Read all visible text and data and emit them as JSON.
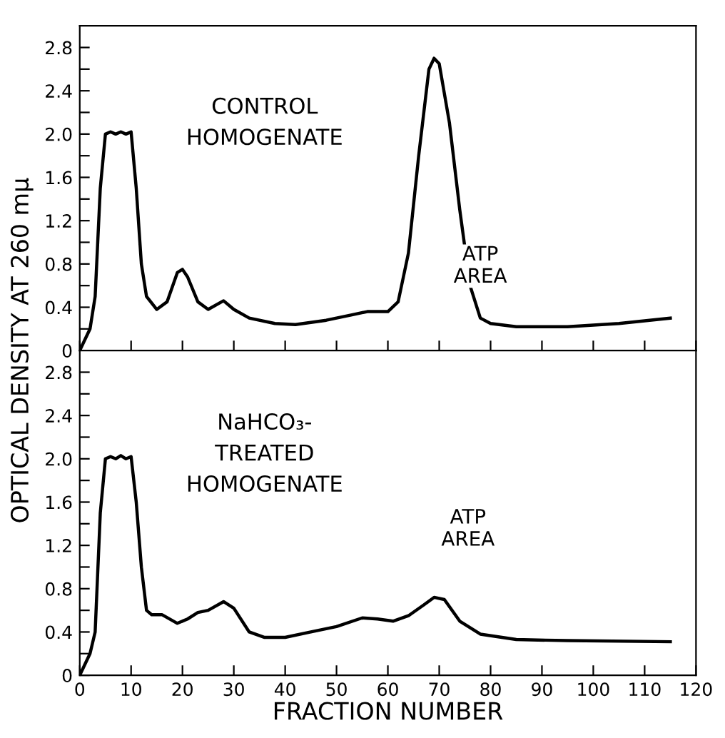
{
  "chart_data": [
    {
      "type": "line",
      "ylabel": "OPTICAL DENSITY AT 260 mμ",
      "annotations": [
        "CONTROL\nHOMOGENATE",
        "ATP\nAREA"
      ],
      "x": [
        0,
        2,
        3,
        4,
        5,
        6,
        7,
        8,
        9,
        10,
        11,
        12,
        13,
        15,
        17,
        19,
        20,
        21,
        23,
        25,
        28,
        30,
        33,
        38,
        42,
        48,
        53,
        56,
        60,
        62,
        64,
        66,
        68,
        69,
        70,
        72,
        74,
        76,
        78,
        80,
        85,
        95,
        105,
        115
      ],
      "series": [
        {
          "color": "#000000",
          "values": [
            0,
            0.2,
            0.5,
            1.5,
            2.0,
            2.02,
            2.0,
            2.02,
            2.0,
            2.02,
            1.5,
            0.8,
            0.5,
            0.38,
            0.45,
            0.72,
            0.75,
            0.68,
            0.45,
            0.38,
            0.46,
            0.38,
            0.3,
            0.25,
            0.24,
            0.28,
            0.33,
            0.36,
            0.36,
            0.45,
            0.9,
            1.8,
            2.6,
            2.7,
            2.65,
            2.1,
            1.3,
            0.6,
            0.3,
            0.25,
            0.22,
            0.22,
            0.25,
            0.3
          ]
        }
      ],
      "xlim": [
        0,
        120
      ],
      "xticks": [
        0,
        10,
        20,
        30,
        40,
        50,
        60,
        70,
        80,
        90,
        100,
        110,
        120
      ],
      "ylim": [
        0,
        3.0
      ],
      "yticks": [
        0,
        {
          "value": 0.2,
          "label": null
        },
        0.4,
        {
          "value": 0.6,
          "label": null
        },
        0.8,
        {
          "value": 1.0,
          "label": null
        },
        1.2,
        {
          "value": 1.4,
          "label": null
        },
        1.6,
        {
          "value": 1.8,
          "label": null
        },
        {
          "value": 2.0,
          "label": "2.0"
        },
        {
          "value": 2.2,
          "label": null
        },
        2.4,
        {
          "value": 2.6,
          "label": null
        },
        2.8
      ],
      "tick_labels": "y",
      "grid": false,
      "marker": "none",
      "line_style": "solid"
    },
    {
      "type": "line",
      "xlabel": "FRACTION NUMBER",
      "annotations": [
        "NaHCO₃-\nTREATED\nHOMOGENATE",
        "ATP\nAREA"
      ],
      "x": [
        0,
        2,
        3,
        4,
        5,
        6,
        7,
        8,
        9,
        10,
        11,
        12,
        13,
        14,
        16,
        19,
        21,
        23,
        25,
        28,
        30,
        33,
        36,
        40,
        45,
        50,
        55,
        58,
        61,
        64,
        67,
        69,
        71,
        74,
        78,
        85,
        95,
        115
      ],
      "series": [
        {
          "color": "#000000",
          "values": [
            0,
            0.2,
            0.4,
            1.5,
            2.0,
            2.02,
            2.0,
            2.03,
            2.0,
            2.02,
            1.6,
            1.0,
            0.6,
            0.56,
            0.56,
            0.48,
            0.52,
            0.58,
            0.6,
            0.68,
            0.62,
            0.4,
            0.35,
            0.35,
            0.4,
            0.45,
            0.53,
            0.52,
            0.5,
            0.55,
            0.65,
            0.72,
            0.7,
            0.5,
            0.38,
            0.33,
            0.32,
            0.31
          ]
        }
      ],
      "xlim": [
        0,
        120
      ],
      "xticks": [
        0,
        10,
        20,
        30,
        40,
        50,
        60,
        70,
        80,
        90,
        100,
        110,
        120
      ],
      "ylim": [
        0,
        3.0
      ],
      "yticks": [
        0,
        {
          "value": 0.2,
          "label": null
        },
        0.4,
        {
          "value": 0.6,
          "label": null
        },
        0.8,
        {
          "value": 1.0,
          "label": null
        },
        1.2,
        {
          "value": 1.4,
          "label": null
        },
        1.6,
        {
          "value": 1.8,
          "label": null
        },
        {
          "value": 2.0,
          "label": "2.0"
        },
        {
          "value": 2.2,
          "label": null
        },
        2.4,
        {
          "value": 2.6,
          "label": null
        },
        2.8
      ],
      "grid": false,
      "marker": "none",
      "line_style": "solid"
    }
  ]
}
